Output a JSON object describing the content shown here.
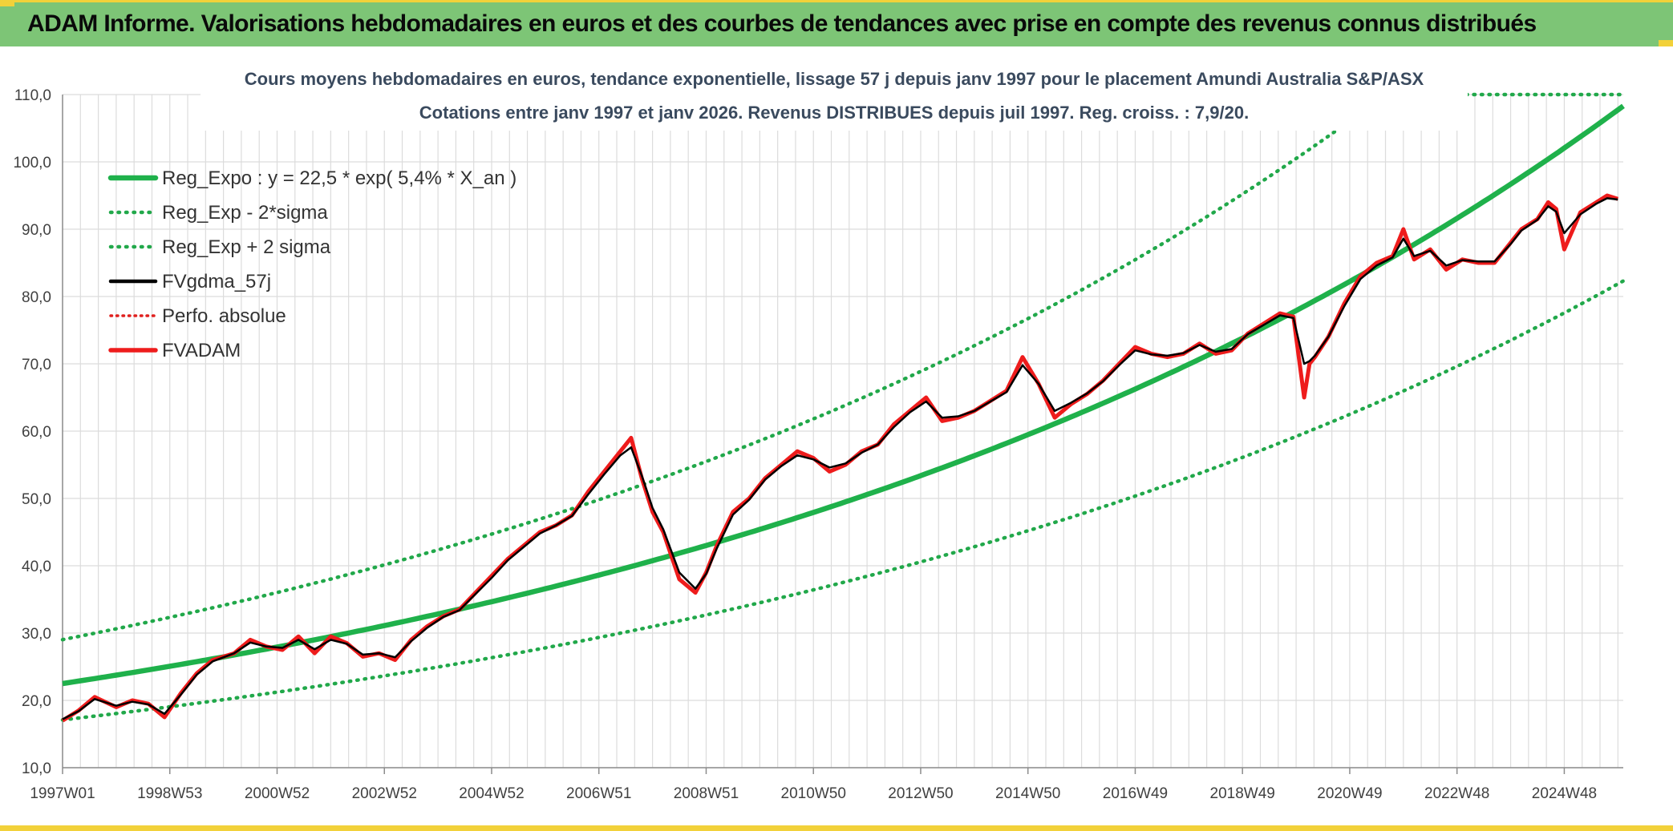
{
  "banner": {
    "title": "ADAM Informe. Valorisations hebdomadaires en euros et des courbes de tendances avec prise en compte des revenus connus distribués"
  },
  "colors": {
    "banner_bg": "#7dc576",
    "accent_yellow": "#f2d13a",
    "reg_green": "#1fb14b",
    "sigma_green": "#21a84a",
    "fv_black": "#000000",
    "fvadam_red": "#ee1c1c",
    "perfo_red": "#e0201e",
    "grid": "#dcdcdc"
  },
  "chart_data": {
    "type": "line",
    "title": "Cours moyens hebdomadaires en euros, tendance exponentielle, lissage 57 j depuis janv 1997 pour le placement Amundi Australia S&P/ASX",
    "subtitle": "Cotations entre janv 1997 et janv 2026. Revenus DISTRIBUES depuis juil 1997. Reg. croiss. : 7,9/20.",
    "xlabel": "",
    "ylabel": "",
    "ylim": [
      10,
      110
    ],
    "yticks": [
      "10,0",
      "20,0",
      "30,0",
      "40,0",
      "50,0",
      "60,0",
      "70,0",
      "80,0",
      "90,0",
      "100,0",
      "110,0"
    ],
    "xlim": [
      1997.0,
      2026.1
    ],
    "xtick_labels": [
      "1997W01",
      "1998W53",
      "2000W52",
      "2002W52",
      "2004W52",
      "2006W51",
      "2008W51",
      "2010W50",
      "2012W50",
      "2014W50",
      "2016W49",
      "2018W49",
      "2020W49",
      "2022W48",
      "2024W48"
    ],
    "xtick_years": [
      1997.0,
      1999.0,
      2001.0,
      2003.0,
      2005.0,
      2007.0,
      2009.0,
      2011.0,
      2013.0,
      2015.0,
      2017.0,
      2019.0,
      2021.0,
      2023.0,
      2025.0
    ],
    "grid": true,
    "legend_position": "top-left",
    "legend": [
      {
        "label": "Reg_Expo : y = 22,5 * exp( 5,4% *  X_an )",
        "style": "solid-green"
      },
      {
        "label": "Reg_Exp - 2*sigma",
        "style": "dotted-green"
      },
      {
        "label": "Reg_Exp + 2 sigma",
        "style": "dotted-green"
      },
      {
        "label": "FVgdma_57j",
        "style": "solid-black"
      },
      {
        "label": "Perfo. absolue",
        "style": "dotted-red"
      },
      {
        "label": "FVADAM",
        "style": "solid-red"
      }
    ],
    "regression": {
      "a": 22.5,
      "growth": 0.054,
      "lower_factor": 0.76,
      "upper_factor": 1.29
    },
    "series": [
      {
        "name": "FVADAM",
        "x": [
          1997.0,
          1997.3,
          1997.6,
          1998.0,
          1998.3,
          1998.6,
          1998.9,
          1999.2,
          1999.5,
          1999.8,
          2000.2,
          2000.5,
          2000.8,
          2001.1,
          2001.4,
          2001.7,
          2002.0,
          2002.3,
          2002.6,
          2002.9,
          2003.2,
          2003.5,
          2003.8,
          2004.1,
          2004.4,
          2004.7,
          2005.0,
          2005.3,
          2005.6,
          2005.9,
          2006.2,
          2006.5,
          2006.8,
          2007.1,
          2007.4,
          2007.6,
          2007.8,
          2008.0,
          2008.2,
          2008.5,
          2008.8,
          2009.0,
          2009.2,
          2009.5,
          2009.8,
          2010.1,
          2010.4,
          2010.7,
          2011.0,
          2011.3,
          2011.6,
          2011.9,
          2012.2,
          2012.5,
          2012.8,
          2013.1,
          2013.4,
          2013.7,
          2014.0,
          2014.3,
          2014.6,
          2014.9,
          2015.2,
          2015.5,
          2015.8,
          2016.1,
          2016.4,
          2016.7,
          2017.0,
          2017.3,
          2017.6,
          2017.9,
          2018.2,
          2018.5,
          2018.8,
          2019.1,
          2019.4,
          2019.7,
          2019.95,
          2020.15,
          2020.25,
          2020.35,
          2020.6,
          2020.9,
          2021.2,
          2021.5,
          2021.8,
          2022.0,
          2022.2,
          2022.5,
          2022.8,
          2023.1,
          2023.4,
          2023.7,
          2024.0,
          2024.2,
          2024.5,
          2024.7,
          2024.85,
          2025.0,
          2025.3,
          2025.6,
          2025.8,
          2026.0
        ],
        "values": [
          17.0,
          18.5,
          20.5,
          19.0,
          20.0,
          19.5,
          17.5,
          21.0,
          24.0,
          26.0,
          27.0,
          29.0,
          28.0,
          27.5,
          29.5,
          27.0,
          29.5,
          28.5,
          26.5,
          27.0,
          26.0,
          29.0,
          31.0,
          32.5,
          33.5,
          36.0,
          38.5,
          41.0,
          43.0,
          45.0,
          46.0,
          47.5,
          51.0,
          54.0,
          57.0,
          59.0,
          53.0,
          48.0,
          45.0,
          38.0,
          36.0,
          39.0,
          43.0,
          48.0,
          50.0,
          53.0,
          55.0,
          57.0,
          56.0,
          54.0,
          55.0,
          57.0,
          58.0,
          61.0,
          63.0,
          65.0,
          61.5,
          62.0,
          63.0,
          64.5,
          66.0,
          71.0,
          67.0,
          62.0,
          64.0,
          65.5,
          67.5,
          70.0,
          72.5,
          71.5,
          71.0,
          71.5,
          73.0,
          71.5,
          72.0,
          74.5,
          76.0,
          77.5,
          77.0,
          65.0,
          70.0,
          71.0,
          74.0,
          79.0,
          83.0,
          85.0,
          86.0,
          90.0,
          85.5,
          87.0,
          84.0,
          85.5,
          85.0,
          85.0,
          88.0,
          90.0,
          91.5,
          94.0,
          93.0,
          87.0,
          92.5,
          94.0,
          95.0,
          94.5
        ]
      },
      {
        "name": "FVgdma_57j",
        "x": [
          1997.0,
          1997.3,
          1997.6,
          1998.0,
          1998.3,
          1998.6,
          1998.9,
          1999.2,
          1999.5,
          1999.8,
          2000.2,
          2000.5,
          2000.8,
          2001.1,
          2001.4,
          2001.7,
          2002.0,
          2002.3,
          2002.6,
          2002.9,
          2003.2,
          2003.5,
          2003.8,
          2004.1,
          2004.4,
          2004.7,
          2005.0,
          2005.3,
          2005.6,
          2005.9,
          2006.2,
          2006.5,
          2006.8,
          2007.1,
          2007.4,
          2007.6,
          2007.8,
          2008.0,
          2008.2,
          2008.5,
          2008.8,
          2009.0,
          2009.2,
          2009.5,
          2009.8,
          2010.1,
          2010.4,
          2010.7,
          2011.0,
          2011.3,
          2011.6,
          2011.9,
          2012.2,
          2012.5,
          2012.8,
          2013.1,
          2013.4,
          2013.7,
          2014.0,
          2014.3,
          2014.6,
          2014.9,
          2015.2,
          2015.5,
          2015.8,
          2016.1,
          2016.4,
          2016.7,
          2017.0,
          2017.3,
          2017.6,
          2017.9,
          2018.2,
          2018.5,
          2018.8,
          2019.1,
          2019.4,
          2019.7,
          2019.95,
          2020.15,
          2020.25,
          2020.35,
          2020.6,
          2020.9,
          2021.2,
          2021.5,
          2021.8,
          2022.0,
          2022.2,
          2022.5,
          2022.8,
          2023.1,
          2023.4,
          2023.7,
          2024.0,
          2024.2,
          2024.5,
          2024.7,
          2024.85,
          2025.0,
          2025.3,
          2025.6,
          2025.8,
          2026.0
        ],
        "values": [
          17.2,
          18.4,
          20.2,
          19.2,
          19.8,
          19.4,
          18.0,
          20.8,
          23.8,
          25.8,
          27.0,
          28.6,
          28.0,
          27.8,
          29.0,
          27.6,
          29.0,
          28.4,
          26.8,
          27.0,
          26.4,
          28.8,
          30.8,
          32.4,
          33.4,
          35.8,
          38.2,
          40.8,
          42.8,
          44.8,
          46.0,
          47.4,
          50.6,
          53.6,
          56.4,
          57.6,
          53.4,
          48.6,
          45.4,
          39.0,
          36.6,
          38.8,
          42.6,
          47.6,
          49.8,
          52.8,
          54.8,
          56.4,
          55.8,
          54.6,
          55.2,
          56.8,
          58.0,
          60.6,
          62.8,
          64.4,
          62.0,
          62.2,
          63.0,
          64.4,
          65.8,
          69.8,
          67.0,
          63.0,
          64.2,
          65.6,
          67.4,
          69.8,
          72.0,
          71.4,
          71.2,
          71.6,
          72.8,
          71.8,
          72.2,
          74.4,
          75.8,
          77.2,
          76.8,
          70.0,
          70.4,
          71.2,
          74.0,
          78.6,
          82.6,
          84.6,
          85.8,
          88.6,
          86.0,
          86.8,
          84.6,
          85.4,
          85.2,
          85.2,
          87.8,
          89.8,
          91.4,
          93.4,
          92.6,
          89.4,
          92.2,
          93.8,
          94.6,
          94.4
        ]
      },
      {
        "name": "Reg_Expo",
        "formula": "22,5 * exp(5,4% * X_an)"
      },
      {
        "name": "Reg_Exp - 2*sigma",
        "formula": "0,76 * Reg_Expo"
      },
      {
        "name": "Reg_Exp + 2 sigma",
        "formula": "1,29 * Reg_Expo"
      },
      {
        "name": "Perfo. absolue",
        "values": []
      }
    ]
  }
}
